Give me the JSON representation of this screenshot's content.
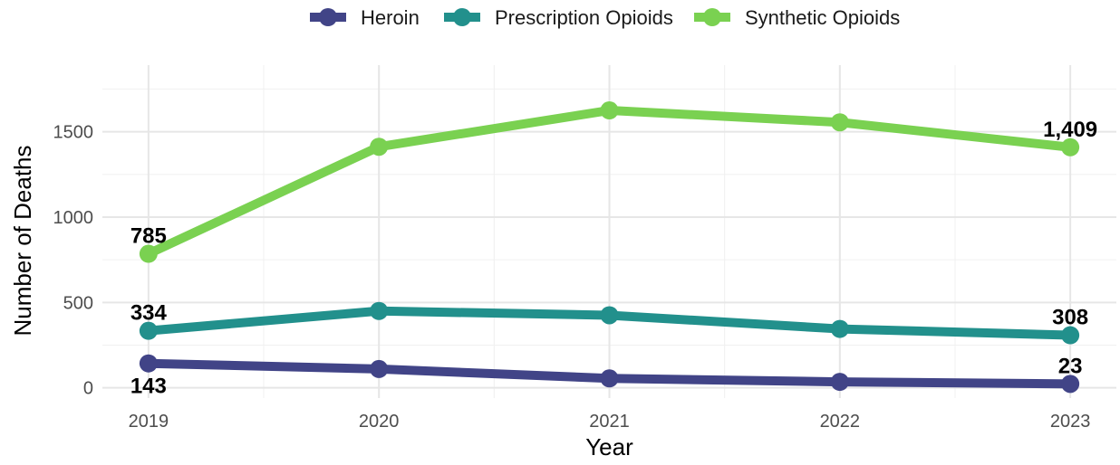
{
  "chart_data": {
    "type": "line",
    "x": [
      2019,
      2020,
      2021,
      2022,
      2023
    ],
    "xlabel": "Year",
    "ylabel": "Number of Deaths",
    "ylim": [
      -60,
      1890
    ],
    "y_ticks": [
      0,
      500,
      1000,
      1500
    ],
    "grid": true,
    "legend_position": "top",
    "series": [
      {
        "name": "Heroin",
        "color": "#414487",
        "values": [
          143,
          110,
          55,
          35,
          23
        ]
      },
      {
        "name": "Prescription Opioids",
        "color": "#22908C",
        "values": [
          334,
          450,
          425,
          345,
          308
        ]
      },
      {
        "name": "Synthetic Opioids",
        "color": "#7AD151",
        "values": [
          785,
          1412,
          1625,
          1555,
          1409
        ]
      }
    ],
    "annotations": [
      {
        "series": 0,
        "x": 2019,
        "text": "143",
        "position": "below"
      },
      {
        "series": 0,
        "x": 2023,
        "text": "23",
        "position": "above"
      },
      {
        "series": 1,
        "x": 2019,
        "text": "334",
        "position": "above"
      },
      {
        "series": 1,
        "x": 2023,
        "text": "308",
        "position": "above"
      },
      {
        "series": 2,
        "x": 2019,
        "text": "785",
        "position": "above"
      },
      {
        "series": 2,
        "x": 2023,
        "text": "1,409",
        "position": "above"
      }
    ]
  }
}
